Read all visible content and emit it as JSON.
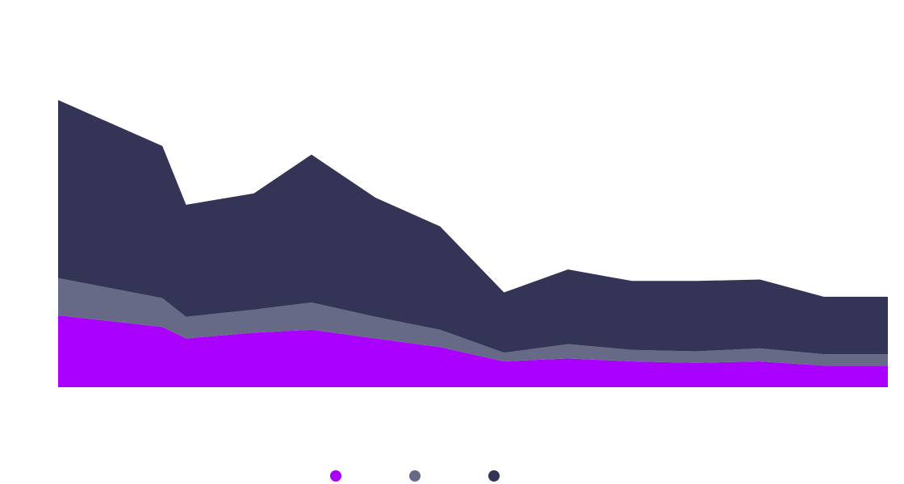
{
  "chart_data": {
    "type": "area",
    "stacked": true,
    "title": "",
    "xlabel": "",
    "ylabel": "",
    "x_index": [
      0,
      1.63,
      2,
      3.06,
      3.96,
      4.96,
      5.97,
      6.97,
      7.97,
      8.97,
      9.97,
      10.97,
      11.97,
      12.97
    ],
    "ylim": [
      0,
      100
    ],
    "grid": false,
    "legend": {
      "position": "bottom-center"
    },
    "series": [
      {
        "name": "",
        "color": "#aa00ff",
        "values": [
          25,
          21,
          17,
          19,
          20,
          17,
          14,
          9,
          10,
          9,
          8.5,
          9,
          7.5,
          7.5
        ]
      },
      {
        "name": "",
        "color": "#676a86",
        "values": [
          13,
          10,
          7.5,
          8,
          9.5,
          7.5,
          6,
          3,
          5,
          4,
          4,
          4.5,
          4,
          4
        ]
      },
      {
        "name": "",
        "color": "#343456",
        "values": [
          62,
          53,
          39,
          40.5,
          51.5,
          41.5,
          36,
          21,
          26,
          24,
          24.5,
          24,
          20,
          20
        ]
      }
    ]
  }
}
